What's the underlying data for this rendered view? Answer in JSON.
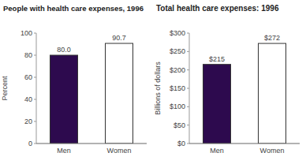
{
  "chart_data": [
    {
      "type": "bar",
      "title": "People with health care expenses, 1996",
      "categories": [
        "Men",
        "Women"
      ],
      "values": [
        80.0,
        90.7
      ],
      "value_labels": [
        "80.0",
        "90.7"
      ],
      "colors": [
        "#2d0a4e",
        "#ffffff"
      ],
      "y_label": "Percent",
      "ylim": [
        0,
        100
      ],
      "yticks": [
        0,
        20,
        40,
        60,
        80,
        100
      ],
      "data_labels": true
    },
    {
      "type": "bar",
      "title": "Total health care expenses: 1996",
      "categories": [
        "Men",
        "Women"
      ],
      "values": [
        215,
        272
      ],
      "value_labels": [
        "$215",
        "$272"
      ],
      "colors": [
        "#2d0a4e",
        "#ffffff"
      ],
      "y_label": "Billions of dollars",
      "ylim": [
        0,
        300
      ],
      "yticks": [
        {
          "value": 0,
          "label": "$0"
        },
        {
          "value": 50,
          "label": "$50"
        },
        {
          "value": 100,
          "label": "$100"
        },
        {
          "value": 150,
          "label": "$150"
        },
        {
          "value": 200,
          "label": "$200"
        },
        {
          "value": 250,
          "label": "$250"
        },
        {
          "value": 300,
          "label": "$300"
        }
      ],
      "data_labels": true
    }
  ]
}
